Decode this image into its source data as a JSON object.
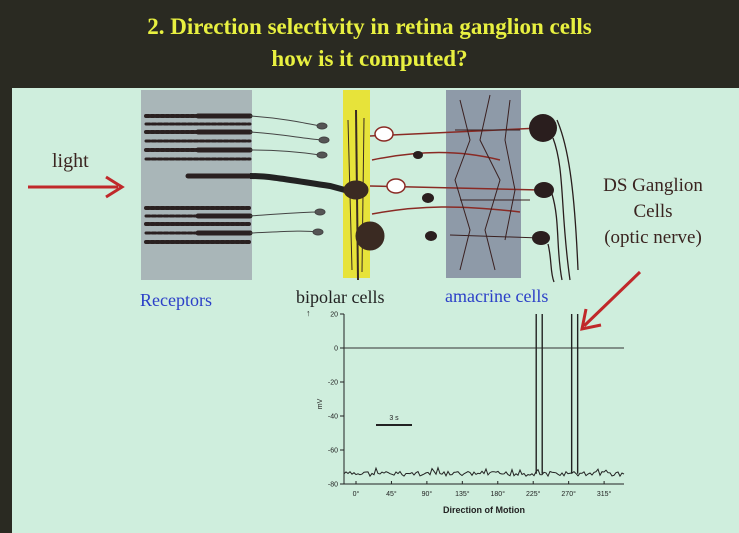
{
  "slide": {
    "title_line1": "2. Direction selectivity in retina ganglion cells",
    "title_line2": "how is it computed?",
    "light_label": "light",
    "receptors_label": "Receptors",
    "bipolar_label": "bipolar cells",
    "amacrine_label": "amacrine cells",
    "ds_label_line1": "DS Ganglion",
    "ds_label_line2": "Cells",
    "ds_label_line3": "(optic nerve)",
    "colors": {
      "title": "#e8f040",
      "background": "#cfeedd",
      "blue_label": "#2b3fc8",
      "arrow": "#c0282a",
      "bipolar_band": "#e7e33a",
      "amacrine_band": "#8e9aa8"
    }
  },
  "chart_data": {
    "type": "line",
    "ylabel": "mV",
    "xlabel": "Direction of Motion",
    "ylim": [
      -80,
      20
    ],
    "y_ticks": [
      20,
      0,
      -20,
      -40,
      -60,
      -80
    ],
    "x_ticks": [
      "0°",
      "45°",
      "90°",
      "135°",
      "180°",
      "225°",
      "270°",
      "315°"
    ],
    "scale_bar_label": "3 s",
    "reference_line_mv": 0,
    "resting_potential_mv": -74,
    "spikes": [
      {
        "direction": "225°",
        "peak_mv": 20
      },
      {
        "direction": "225°",
        "peak_mv": 20
      },
      {
        "direction": "270°",
        "peak_mv": 20
      },
      {
        "direction": "270°",
        "peak_mv": 20
      }
    ]
  }
}
